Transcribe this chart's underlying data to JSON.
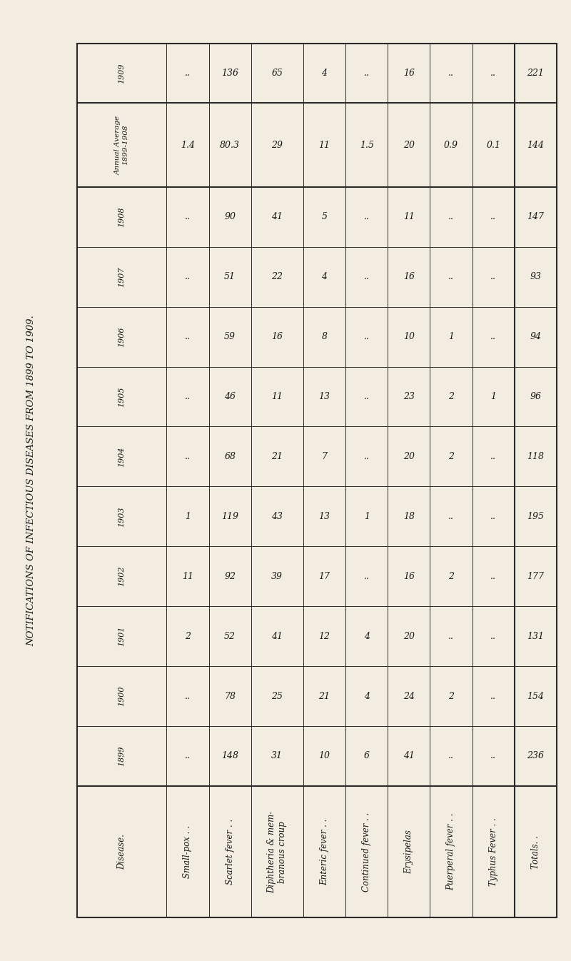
{
  "title": "NOTIFICATIONS OF INFECTIOUS DISEASES FROM 1899 TO 1909.",
  "background_color": "#f2ede0",
  "table_bg": "#f2ede0",
  "row_labels": [
    "Disease.",
    "Small-pox . .",
    "Scarlet fever . .",
    "Diphtheria & mem-\nbranous croup",
    "Enteric fever . .",
    "Continued fever . .",
    "Erysipelas",
    "Puerperal fever . .",
    "Typhus Fever . .",
    "Totals. ."
  ],
  "col_labels": [
    "1909",
    "Annual Average\n1899-1908",
    "1908",
    "1907",
    "1906",
    "1905",
    "1904",
    "1903",
    "1902",
    "1901",
    "1900",
    "1899"
  ],
  "data": [
    [
      "..",
      "1.4",
      "..",
      "..",
      "..",
      "..",
      "..",
      "1",
      "11",
      "2",
      "..",
      ".."
    ],
    [
      "136",
      "80.3",
      "90",
      "51",
      "59",
      "46",
      "68",
      "119",
      "92",
      "52",
      "78",
      "148"
    ],
    [
      "65",
      "29",
      "41",
      "22",
      "16",
      "11",
      "21",
      "43",
      "39",
      "41",
      "25",
      "31"
    ],
    [
      "4",
      "11",
      "5",
      "4",
      "8",
      "13",
      "7",
      "13",
      "17",
      "12",
      "21",
      "10"
    ],
    [
      "..",
      "1.5",
      "..",
      "..",
      "..",
      "..",
      "..",
      "1",
      "..",
      "4",
      "4",
      "6"
    ],
    [
      "16",
      "20",
      "11",
      "16",
      "10",
      "23",
      "20",
      "18",
      "16",
      "20",
      "24",
      "41"
    ],
    [
      "..",
      "0.9",
      "..",
      "..",
      "1",
      "2",
      "2",
      "..",
      "2",
      "..",
      "2",
      ".."
    ],
    [
      "..",
      "0.1",
      "..",
      "..",
      "..",
      "1",
      "..",
      "..",
      "..",
      "..",
      "..",
      ".."
    ],
    [
      "221",
      "144",
      "147",
      "93",
      "94",
      "96",
      "118",
      "195",
      "177",
      "131",
      "154",
      "236"
    ]
  ],
  "n_diseases": 9,
  "n_years": 12,
  "font_size_data": 9,
  "font_size_header": 8.5,
  "font_size_title": 9.5
}
